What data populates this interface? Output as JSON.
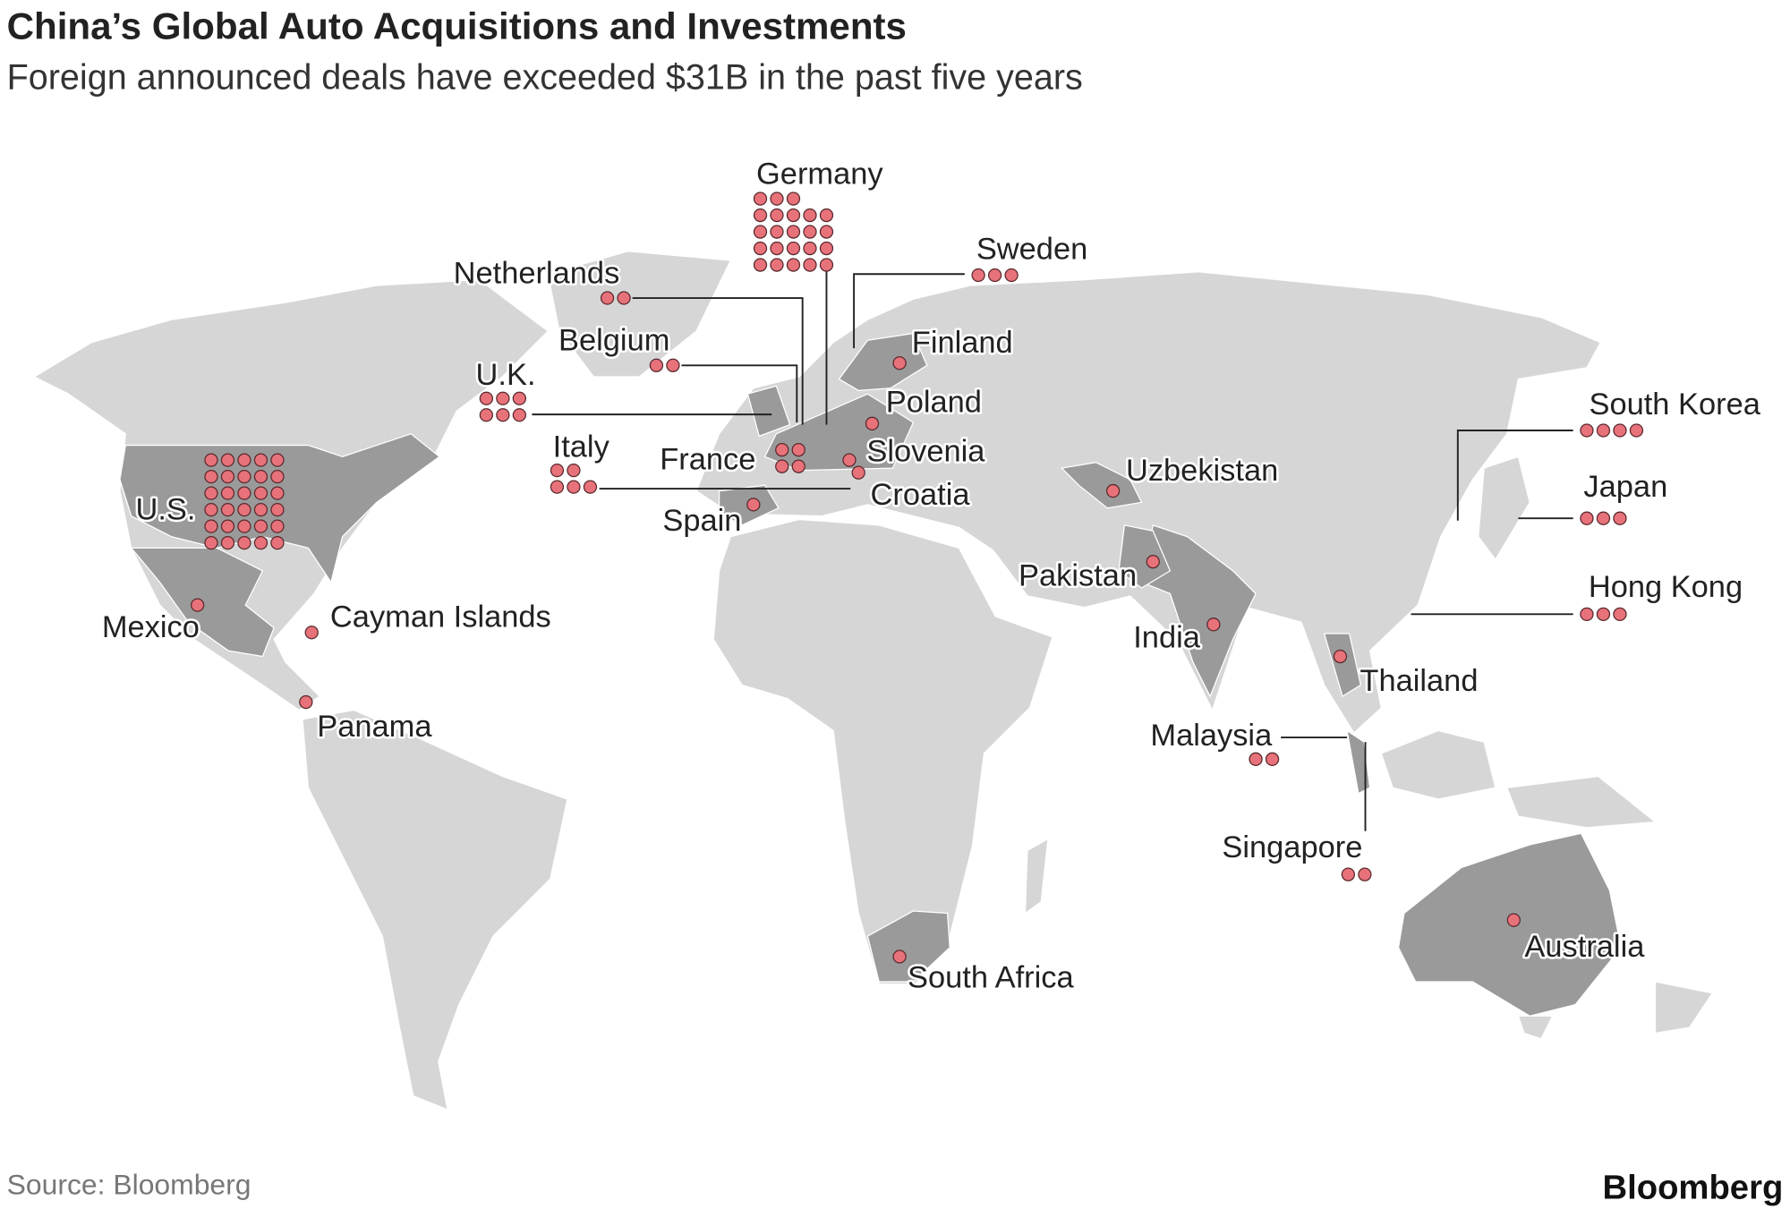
{
  "title": "China’s Global Auto Acquisitions and Investments",
  "subtitle": "Foreign announced deals have exceeded $31B in the past five years",
  "countries": [
    {
      "name": "U.S.",
      "deals": 30
    },
    {
      "name": "Germany",
      "deals": 23
    },
    {
      "name": "Netherlands",
      "deals": 2
    },
    {
      "name": "Belgium",
      "deals": 2
    },
    {
      "name": "U.K.",
      "deals": 6
    },
    {
      "name": "Italy",
      "deals": 5
    },
    {
      "name": "France",
      "deals": 4
    },
    {
      "name": "Spain",
      "deals": 1
    },
    {
      "name": "Sweden",
      "deals": 3
    },
    {
      "name": "Finland",
      "deals": 1
    },
    {
      "name": "Poland",
      "deals": 1
    },
    {
      "name": "Slovenia",
      "deals": 1
    },
    {
      "name": "Croatia",
      "deals": 1
    },
    {
      "name": "Uzbekistan",
      "deals": 1
    },
    {
      "name": "Pakistan",
      "deals": 1
    },
    {
      "name": "India",
      "deals": 1
    },
    {
      "name": "Thailand",
      "deals": 1
    },
    {
      "name": "Malaysia",
      "deals": 2
    },
    {
      "name": "Singapore",
      "deals": 2
    },
    {
      "name": "Hong Kong",
      "deals": 3
    },
    {
      "name": "Japan",
      "deals": 3
    },
    {
      "name": "South Korea",
      "deals": 4
    },
    {
      "name": "Australia",
      "deals": 1
    },
    {
      "name": "South Africa",
      "deals": 1
    },
    {
      "name": "Mexico",
      "deals": 1
    },
    {
      "name": "Cayman Islands",
      "deals": 1
    },
    {
      "name": "Panama",
      "deals": 1
    }
  ],
  "source": "Source: Bloomberg",
  "brand": "Bloomberg"
}
